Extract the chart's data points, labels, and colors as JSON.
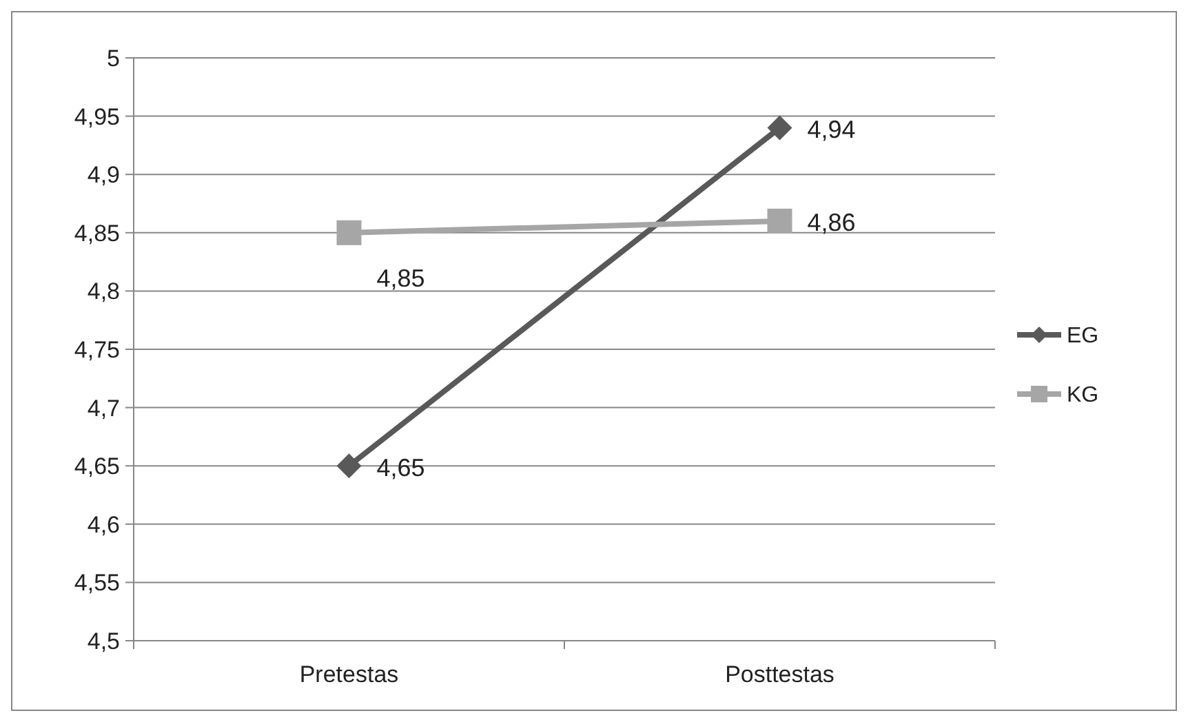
{
  "chart_data": {
    "type": "line",
    "categories": [
      "Pretestas",
      "Posttestas"
    ],
    "series": [
      {
        "name": "EG",
        "color": "#595959",
        "marker": "diamond",
        "values": [
          4.65,
          4.94
        ],
        "value_labels": [
          "4,65",
          "4,94"
        ]
      },
      {
        "name": "KG",
        "color": "#a6a6a6",
        "marker": "square",
        "values": [
          4.85,
          4.86
        ],
        "value_labels": [
          "4,85",
          "4,86"
        ]
      }
    ],
    "ylim": [
      4.5,
      5
    ],
    "yticks": [
      {
        "value": 4.5,
        "label": "4,5"
      },
      {
        "value": 4.55,
        "label": "4,55"
      },
      {
        "value": 4.6,
        "label": "4,6"
      },
      {
        "value": 4.65,
        "label": "4,65"
      },
      {
        "value": 4.7,
        "label": "4,7"
      },
      {
        "value": 4.75,
        "label": "4,75"
      },
      {
        "value": 4.8,
        "label": "4,8"
      },
      {
        "value": 4.85,
        "label": "4,85"
      },
      {
        "value": 4.9,
        "label": "4,9"
      },
      {
        "value": 4.95,
        "label": "4,95"
      },
      5
    ],
    "grid": "y",
    "legend": "right"
  }
}
